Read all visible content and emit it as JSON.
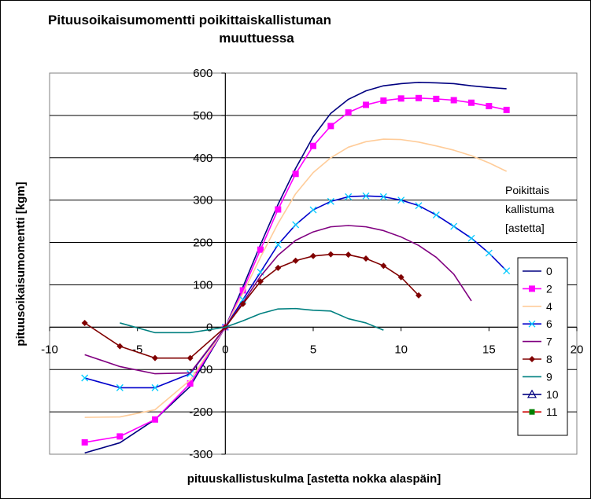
{
  "chart_data": {
    "type": "line",
    "title_line1": "Pituusoikaisumomentti poikittaiskallistuman",
    "title_line2": "muuttuessa",
    "xlabel": "pituuskallistuskulma [astetta nokka alaspäin]",
    "ylabel": "pituusoikaisumomentti [kgm]",
    "xlim": [
      -10,
      20
    ],
    "ylim": [
      -300,
      600
    ],
    "x_ticks": [
      -10,
      -5,
      0,
      5,
      10,
      15,
      20
    ],
    "y_ticks": [
      -300,
      -200,
      -100,
      0,
      100,
      200,
      300,
      400,
      500,
      600
    ],
    "grid": "horizontal",
    "legend_title": [
      "Poikittais",
      "kallistuma",
      "[astetta]"
    ],
    "legend_position": "right",
    "series": [
      {
        "name": "0",
        "color": "#000080",
        "marker": "none",
        "x": [
          -8,
          -6,
          -4,
          -2,
          0,
          1,
          2,
          3,
          4,
          5,
          6,
          7,
          8,
          9,
          10,
          11,
          12,
          13,
          14,
          15,
          16
        ],
        "y": [
          -297,
          -273,
          -218,
          -140,
          0,
          95,
          195,
          290,
          375,
          450,
          505,
          538,
          558,
          570,
          575,
          578,
          577,
          575,
          570,
          566,
          563
        ]
      },
      {
        "name": "2",
        "color": "#FF00FF",
        "marker": "square",
        "x": [
          -8,
          -6,
          -4,
          -2,
          0,
          1,
          2,
          3,
          4,
          5,
          6,
          7,
          8,
          9,
          10,
          11,
          12,
          13,
          14,
          15,
          16
        ],
        "y": [
          -272,
          -258,
          -218,
          -133,
          0,
          87,
          183,
          278,
          362,
          428,
          475,
          507,
          525,
          535,
          540,
          541,
          539,
          536,
          530,
          522,
          513
        ]
      },
      {
        "name": "4",
        "color": "#FFCC99",
        "marker": "none",
        "x": [
          -8,
          -6,
          -4,
          -2,
          0,
          1,
          2,
          3,
          4,
          5,
          6,
          7,
          8,
          9,
          10,
          11,
          12,
          13,
          14,
          15,
          16
        ],
        "y": [
          -213,
          -212,
          -195,
          -125,
          0,
          80,
          165,
          245,
          315,
          365,
          400,
          425,
          438,
          444,
          443,
          437,
          428,
          418,
          405,
          388,
          368
        ]
      },
      {
        "name": "6",
        "color": "#00CCFF",
        "line": "#0000CC",
        "marker": "x",
        "x": [
          -8,
          -6,
          -4,
          -2,
          0,
          1,
          2,
          3,
          4,
          5,
          6,
          7,
          8,
          9,
          10,
          11,
          12,
          13,
          14,
          15,
          16
        ],
        "y": [
          -120,
          -143,
          -143,
          -110,
          0,
          65,
          130,
          195,
          242,
          277,
          297,
          308,
          310,
          308,
          300,
          287,
          265,
          238,
          210,
          175,
          133
        ]
      },
      {
        "name": "7",
        "color": "#800080",
        "marker": "none",
        "x": [
          -8,
          -6,
          -4,
          -2,
          0,
          1,
          2,
          3,
          4,
          5,
          6,
          7,
          8,
          9,
          10,
          11,
          12,
          13,
          14
        ],
        "y": [
          -65,
          -93,
          -110,
          -108,
          0,
          58,
          120,
          170,
          205,
          225,
          237,
          240,
          237,
          228,
          213,
          193,
          165,
          125,
          62
        ]
      },
      {
        "name": "8",
        "color": "#800000",
        "marker": "diamond",
        "x": [
          -8,
          -6,
          -4,
          -2,
          0,
          1,
          2,
          3,
          4,
          5,
          6,
          7,
          8,
          9,
          10,
          11
        ],
        "y": [
          10,
          -45,
          -73,
          -73,
          0,
          55,
          108,
          140,
          157,
          168,
          172,
          171,
          162,
          145,
          118,
          75
        ]
      },
      {
        "name": "9",
        "color": "#008080",
        "marker": "none",
        "x": [
          -6,
          -4,
          -2,
          0,
          1,
          2,
          3,
          4,
          5,
          6,
          7,
          8,
          9
        ],
        "y": [
          10,
          -13,
          -13,
          0,
          15,
          32,
          43,
          44,
          40,
          38,
          20,
          10,
          -7
        ]
      },
      {
        "name": "10",
        "color": "#000080",
        "marker": "triangle",
        "x": [],
        "y": []
      },
      {
        "name": "11",
        "color": "#CC0000",
        "marker": "smallsquare",
        "x": [],
        "y": []
      }
    ]
  }
}
